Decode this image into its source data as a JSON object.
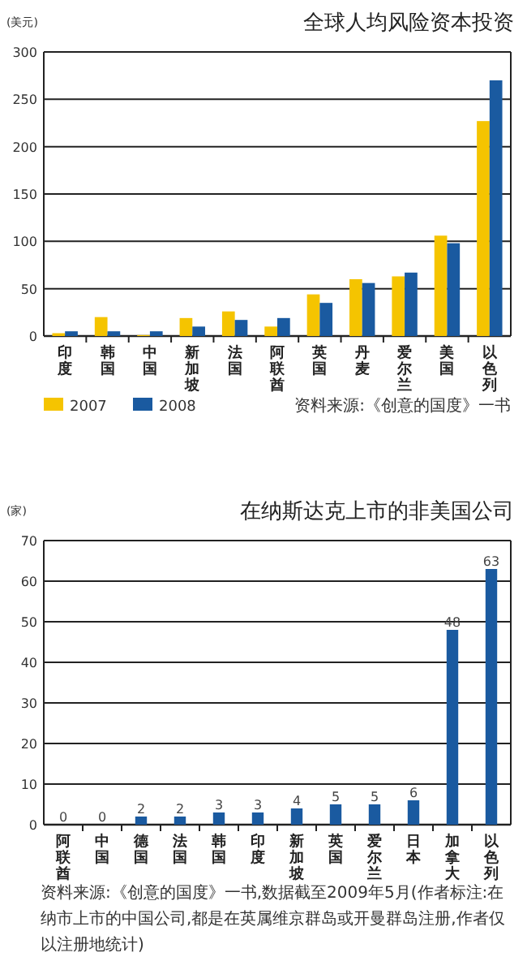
{
  "chart_data": [
    {
      "type": "bar",
      "title": "全球人均风险资本投资",
      "ylabel": "(美元)",
      "categories": [
        "印度",
        "韩国",
        "中国",
        "新加坡",
        "法国",
        "阿联酋",
        "英国",
        "丹麦",
        "爱尔兰",
        "美国",
        "以色列"
      ],
      "series": [
        {
          "name": "2007",
          "color": "#f5c400",
          "values": [
            3,
            20,
            1,
            19,
            26,
            10,
            44,
            60,
            63,
            106,
            227
          ]
        },
        {
          "name": "2008",
          "color": "#1a5aa0",
          "values": [
            5,
            5,
            5,
            10,
            17,
            19,
            35,
            56,
            67,
            98,
            270
          ]
        }
      ],
      "ylim": [
        0,
        300
      ],
      "yticks": [
        0,
        50,
        100,
        150,
        200,
        250,
        300
      ],
      "grid": "y",
      "legend": "bottom left",
      "annotations": [
        "资料来源:《创意的国度》一书"
      ]
    },
    {
      "type": "bar",
      "title": "在纳斯达克上市的非美国公司",
      "ylabel": "(家)",
      "categories": [
        "阿联酋",
        "中国",
        "德国",
        "法国",
        "韩国",
        "印度",
        "新加坡",
        "英国",
        "爱尔兰",
        "日本",
        "加拿大",
        "以色列"
      ],
      "series": [
        {
          "color": "#1a5aa0",
          "values": [
            0,
            0,
            2,
            2,
            3,
            3,
            4,
            5,
            5,
            6,
            48,
            63
          ]
        }
      ],
      "ylim": [
        0,
        70
      ],
      "yticks": [
        0,
        10,
        20,
        30,
        40,
        50,
        60,
        70
      ],
      "grid": "y",
      "data_labels": true,
      "annotations": [
        "资料来源:《创意的国度》一书,数据截至2009年5月(作者标注:在纳市上市的中国公司,都是在英属维京群岛或开曼群岛注册,作者仅以注册地统计)"
      ]
    }
  ]
}
